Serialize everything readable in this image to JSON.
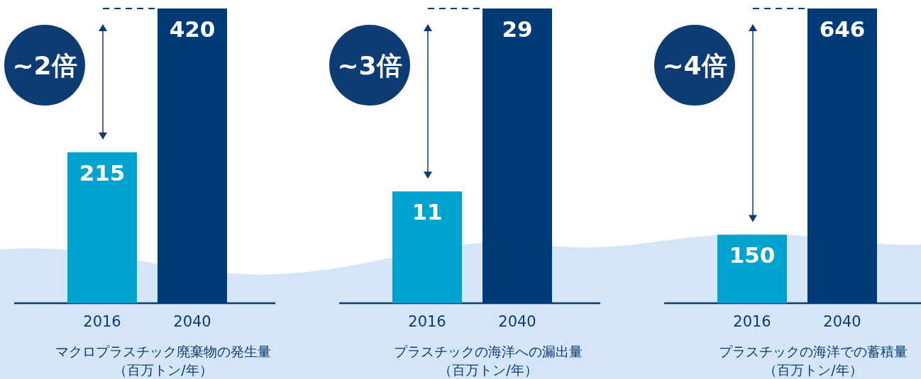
{
  "chart_data": [
    {
      "type": "bar",
      "categories": [
        "2016",
        "2040"
      ],
      "values": [
        215,
        420
      ],
      "colors": [
        "#00a3cf",
        "#003b79"
      ],
      "data_labels": true,
      "xlabel": "マクロプラスチック廃棄物の発生量（百万トン/年）",
      "annotations": [
        "~2倍"
      ]
    },
    {
      "type": "bar",
      "categories": [
        "2016",
        "2040"
      ],
      "values": [
        11,
        29
      ],
      "colors": [
        "#00a3cf",
        "#003b79"
      ],
      "data_labels": true,
      "xlabel": "プラスチックの海洋への漏出量（百万トン/年）",
      "annotations": [
        "~3倍"
      ]
    },
    {
      "type": "bar",
      "categories": [
        "2016",
        "2040"
      ],
      "values": [
        150,
        646
      ],
      "colors": [
        "#00a3cf",
        "#003b79"
      ],
      "data_labels": true,
      "xlabel": "プラスチックの海洋での蓄積量（百万トン/年）",
      "annotations": [
        "~4倍"
      ]
    }
  ]
}
